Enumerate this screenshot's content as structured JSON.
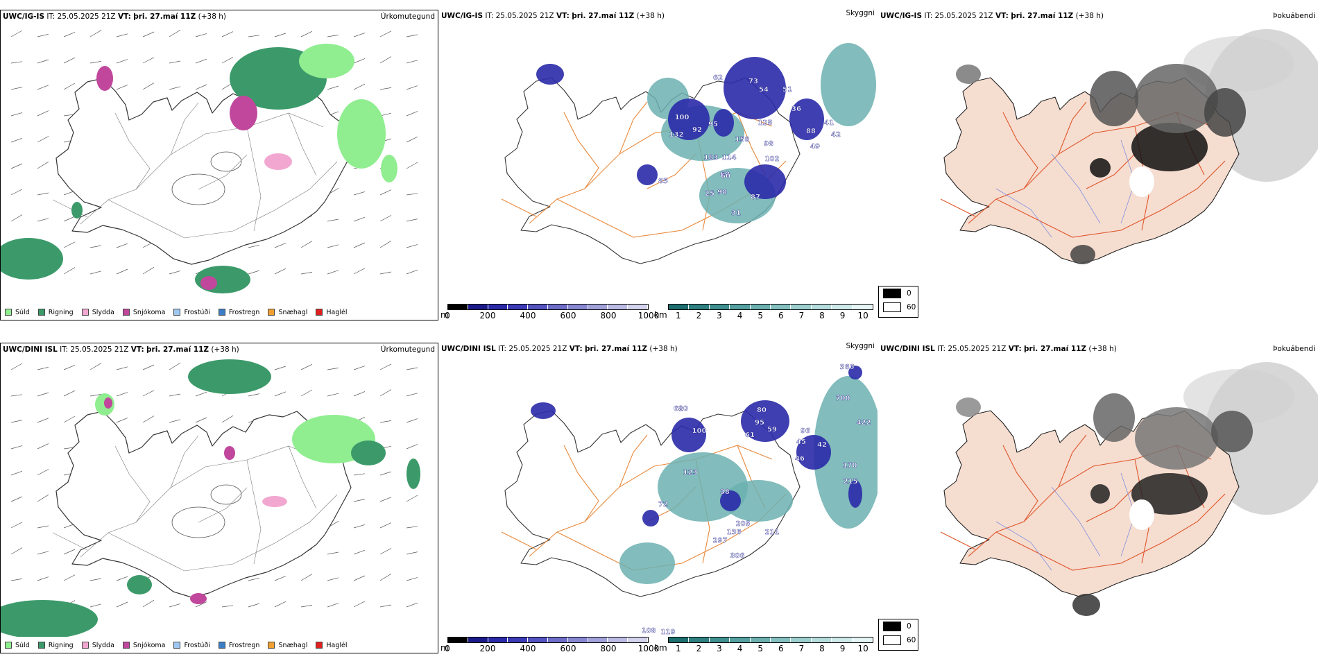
{
  "rows": [
    {
      "precip": {
        "model": "UWC/IG-IS",
        "it_label": "IT:",
        "it_value": "25.05.2025 21Z",
        "vt_label": "VT:",
        "vt_value": "þri. 27.maí 11Z",
        "lead": "(+38 h)",
        "right": "Úrkomutegund"
      },
      "cloud": {
        "model": "UWC/IG-IS",
        "it_label": "IT:",
        "it_value": "25.05.2025 21Z",
        "vt_label": "VT:",
        "vt_value": "þri. 27.maí 11Z",
        "lead": "(+38 h)",
        "right": "Skyggni",
        "numbers": [
          "73",
          "62",
          "54",
          "51",
          "36",
          "41",
          "42",
          "49",
          "88",
          "125",
          "158",
          "98",
          "114",
          "183",
          "102",
          "60",
          "95",
          "92",
          "132",
          "100",
          "85",
          "98",
          "60",
          "87",
          "31",
          "25"
        ]
      },
      "fog": {
        "model": "UWC/IG-IS",
        "it_label": "IT:",
        "it_value": "25.05.2025 21Z",
        "vt_label": "VT:",
        "vt_value": "þri. 27.maí 11Z",
        "lead": "(+38 h)",
        "right": "Þokuábendi"
      }
    },
    {
      "precip": {
        "model": "UWC/DINI ISL",
        "it_label": "IT:",
        "it_value": "25.05.2025 21Z",
        "vt_label": "VT:",
        "vt_value": "þri. 27.maí 11Z",
        "lead": "(+38 h)",
        "right": "Úrkomutegund"
      },
      "cloud": {
        "model": "UWC/DINI ISL",
        "it_label": "IT:",
        "it_value": "25.05.2025 21Z",
        "vt_label": "VT:",
        "vt_value": "þri. 27.maí 11Z",
        "lead": "(+38 h)",
        "right": "Skyggni",
        "numbers": [
          "366",
          "700",
          "422",
          "80",
          "95",
          "61",
          "59",
          "96",
          "46",
          "45",
          "42",
          "62",
          "100",
          "80",
          "72",
          "205",
          "136",
          "211",
          "297",
          "306",
          "170",
          "215",
          "123",
          "108",
          "119",
          "38"
        ]
      },
      "fog": {
        "model": "UWC/DINI ISL",
        "it_label": "IT:",
        "it_value": "25.05.2025 21Z",
        "vt_label": "VT:",
        "vt_value": "þri. 27.maí 11Z",
        "lead": "(+38 h)",
        "right": "Þokuábendi"
      }
    }
  ],
  "precip_legend": [
    {
      "label": "Súld",
      "color": "#90ee90"
    },
    {
      "label": "Rigning",
      "color": "#3c9a6a"
    },
    {
      "label": "Slydda",
      "color": "#f2a7d0"
    },
    {
      "label": "Snjókoma",
      "color": "#c0479c"
    },
    {
      "label": "Frostúði",
      "color": "#9ec8f0"
    },
    {
      "label": "Frostregn",
      "color": "#3b7dc4"
    },
    {
      "label": "Snæhagl",
      "color": "#f0a030"
    },
    {
      "label": "Haglél",
      "color": "#e02020"
    }
  ],
  "height_bar": {
    "unit": "m",
    "ticks": [
      "0",
      "200",
      "400",
      "600",
      "800",
      "1000"
    ],
    "colors": [
      "#000000",
      "#1a1a8a",
      "#2a2aa8",
      "#3b3bb6",
      "#5454c0",
      "#6e6ec9",
      "#8888d2",
      "#a2a2db",
      "#bbbbe4",
      "#d4d4ee"
    ]
  },
  "vis_bar": {
    "unit": "km",
    "ticks": [
      "1",
      "2",
      "3",
      "4",
      "5",
      "6",
      "7",
      "8",
      "9",
      "10"
    ],
    "colors": [
      "#1d6f6f",
      "#2f8080",
      "#409090",
      "#55a0a0",
      "#6cb0b0",
      "#84c0c0",
      "#9dcfcf",
      "#b6dddd",
      "#cfeaea",
      "#e6f5f5"
    ]
  },
  "fog_legend": [
    {
      "label": "0",
      "color": "#000000"
    },
    {
      "label": "60",
      "color": "#ffffff"
    }
  ],
  "colors": {
    "land_fog": "#f5ddd0",
    "roads": "#e8883a",
    "rivers": "#8090e0",
    "coast": "#333333"
  }
}
